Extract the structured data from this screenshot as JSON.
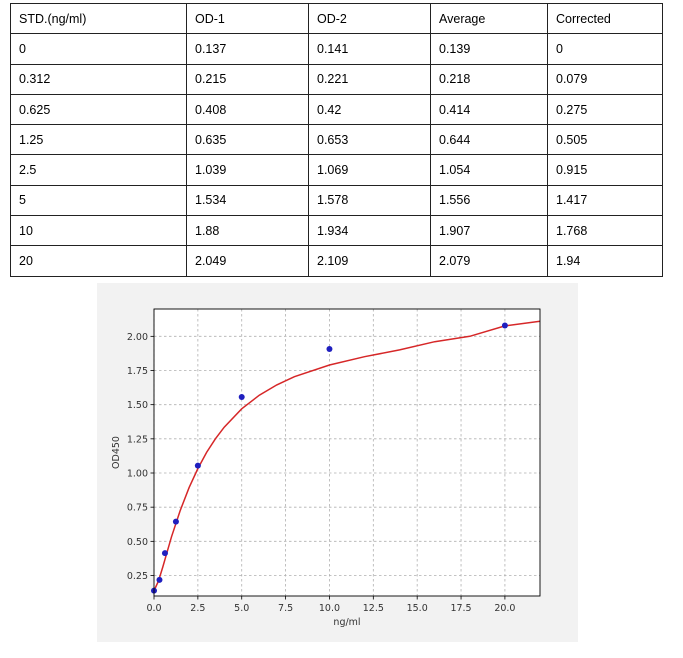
{
  "table": {
    "headers": [
      "STD.(ng/ml)",
      "OD-1",
      "OD-2",
      "Average",
      "Corrected"
    ],
    "rows": [
      [
        "0",
        "0.137",
        "0.141",
        "0.139",
        "0"
      ],
      [
        "0.312",
        "0.215",
        "0.221",
        "0.218",
        "0.079"
      ],
      [
        "0.625",
        "0.408",
        "0.42",
        "0.414",
        "0.275"
      ],
      [
        "1.25",
        "0.635",
        "0.653",
        "0.644",
        "0.505"
      ],
      [
        "2.5",
        "1.039",
        "1.069",
        "1.054",
        "0.915"
      ],
      [
        "5",
        "1.534",
        "1.578",
        "1.556",
        "1.417"
      ],
      [
        "10",
        "1.88",
        "1.934",
        "1.907",
        "1.768"
      ],
      [
        "20",
        "2.049",
        "2.109",
        "2.079",
        "1.94"
      ]
    ]
  },
  "chart_data": {
    "type": "scatter",
    "title": "",
    "xlabel": "ng/ml",
    "ylabel": "OD450",
    "xlim": [
      0,
      22
    ],
    "ylim": [
      0.1,
      2.2
    ],
    "xticks": [
      "0.0",
      "2.5",
      "5.0",
      "7.5",
      "10.0",
      "12.5",
      "15.0",
      "17.5",
      "20.0"
    ],
    "yticks": [
      "0.25",
      "0.50",
      "0.75",
      "1.00",
      "1.25",
      "1.50",
      "1.75",
      "2.00"
    ],
    "grid": true,
    "series": [
      {
        "kind": "points",
        "x": [
          0,
          0.312,
          0.625,
          1.25,
          2.5,
          5,
          10,
          20
        ],
        "y": [
          0.139,
          0.218,
          0.414,
          0.644,
          1.054,
          1.556,
          1.907,
          2.079
        ],
        "color": "#1f1fbf"
      },
      {
        "kind": "fit-curve",
        "x": [
          0,
          0.25,
          0.5,
          0.75,
          1,
          1.5,
          2,
          2.5,
          3,
          3.5,
          4,
          5,
          6,
          7,
          8,
          10,
          12,
          14,
          16,
          18,
          20,
          22
        ],
        "y": [
          0.139,
          0.208,
          0.312,
          0.424,
          0.533,
          0.727,
          0.893,
          1.033,
          1.151,
          1.25,
          1.335,
          1.47,
          1.569,
          1.645,
          1.705,
          1.79,
          1.851,
          1.901,
          1.961,
          2.0,
          2.076,
          2.11
        ],
        "color": "#d62728"
      }
    ]
  }
}
